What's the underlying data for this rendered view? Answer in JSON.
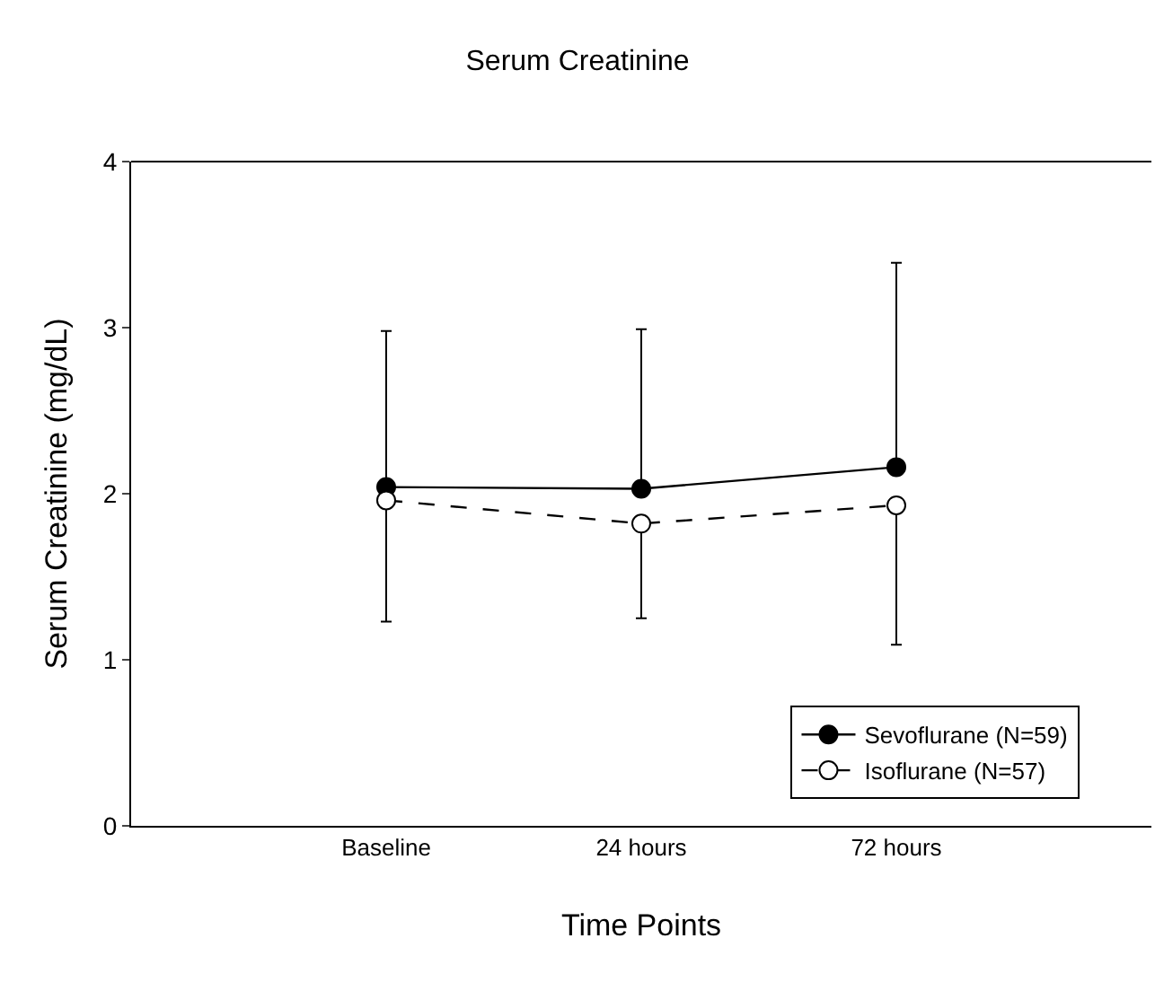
{
  "chart_data": {
    "type": "line",
    "title": "Serum Creatinine",
    "xlabel": "Time Points",
    "ylabel": "Serum Creatinine (mg/dL)",
    "categories": [
      "Baseline",
      "24 hours",
      "72 hours"
    ],
    "series": [
      {
        "name": "Sevoflurane (N=59)",
        "color": "#000000",
        "line_style": "solid",
        "values": [
          2.04,
          2.03,
          2.16
        ],
        "errors": [
          [
            2.04,
            2.98
          ],
          [
            2.03,
            2.99
          ],
          [
            2.16,
            3.39
          ]
        ]
      },
      {
        "name": "Isoflurane (N=57)",
        "color": "#000000",
        "line_style": "dashed",
        "values": [
          1.96,
          1.82,
          1.93
        ],
        "errors": [
          [
            1.23,
            1.96
          ],
          [
            1.25,
            1.82
          ],
          [
            1.09,
            1.93
          ]
        ]
      }
    ],
    "ylim": [
      0,
      4
    ],
    "yticks": [
      0,
      1,
      2,
      3,
      4
    ],
    "marker": "circle",
    "legend": "bottom right"
  }
}
